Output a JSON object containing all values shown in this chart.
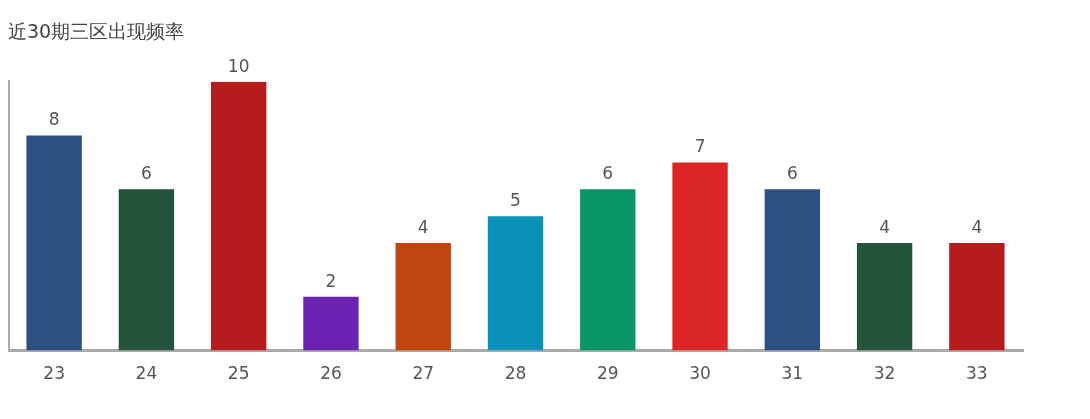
{
  "chart_data": {
    "type": "bar",
    "title": "近30期三区出现频率",
    "categories": [
      "23",
      "24",
      "25",
      "26",
      "27",
      "28",
      "29",
      "30",
      "31",
      "32",
      "33"
    ],
    "values": [
      8,
      6,
      10,
      2,
      4,
      5,
      6,
      7,
      6,
      4,
      4
    ],
    "colors": [
      "#2b5081",
      "#22553c",
      "#b71c1c",
      "#6a22b0",
      "#c0440e",
      "#0a91b8",
      "#069667",
      "#dc2626",
      "#2b5081",
      "#22553c",
      "#b71c1c"
    ],
    "ylim": [
      0,
      10
    ],
    "tick_labels": "x",
    "grid": false,
    "legend": false,
    "data_labels": true
  }
}
